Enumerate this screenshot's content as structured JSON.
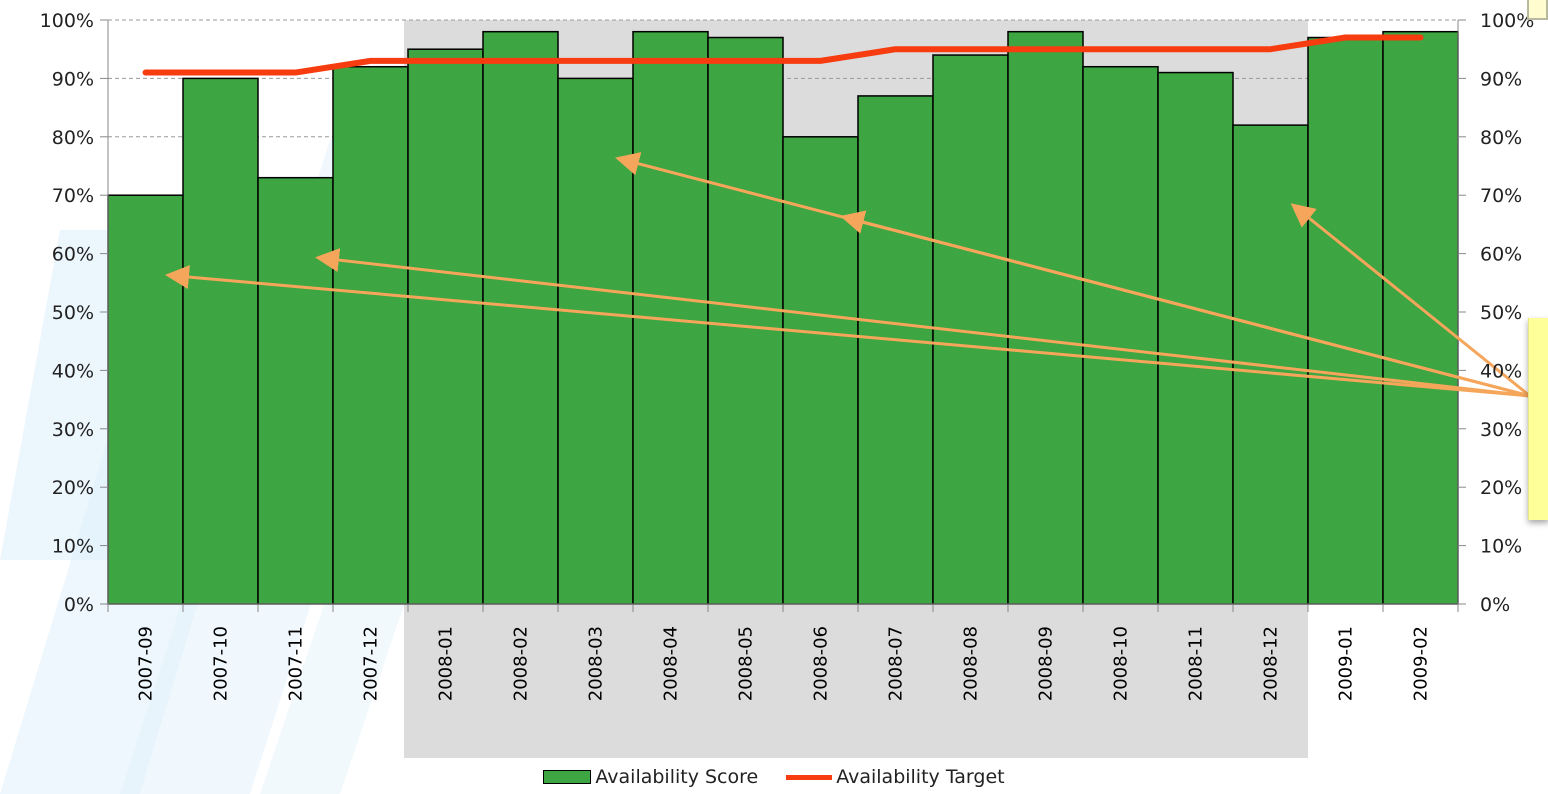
{
  "chart_data": {
    "type": "bar",
    "title": "",
    "xlabel": "",
    "ylabel": "",
    "ylim": [
      0,
      100
    ],
    "y_ticks": [
      "0%",
      "10%",
      "20%",
      "30%",
      "40%",
      "50%",
      "60%",
      "70%",
      "80%",
      "90%",
      "100%"
    ],
    "categories": [
      "2007-09",
      "2007-10",
      "2007-11",
      "2007-12",
      "2008-01",
      "2008-02",
      "2008-03",
      "2008-04",
      "2008-05",
      "2008-06",
      "2008-07",
      "2008-08",
      "2008-09",
      "2008-10",
      "2008-11",
      "2008-12",
      "2009-01",
      "2009-02"
    ],
    "highlight_range": [
      "2008-01",
      "2008-12"
    ],
    "grid": "horizontal dashed at 80%, 90%, 100%",
    "legend_position": "bottom",
    "series": [
      {
        "name": "Availability Score",
        "type": "bar",
        "color": "#3ea543",
        "values": [
          70,
          90,
          73,
          92,
          95,
          98,
          90,
          98,
          97,
          80,
          87,
          94,
          98,
          92,
          91,
          82,
          97,
          98
        ]
      },
      {
        "name": "Availability Target",
        "type": "line",
        "color": "#f73c0f",
        "values": [
          91,
          91,
          91,
          93,
          93,
          93,
          93,
          93,
          93,
          93,
          95,
          95,
          95,
          95,
          95,
          95,
          97,
          97
        ]
      }
    ],
    "annotation_arrows": {
      "color": "#f5a65b",
      "origin": "callout note at right edge",
      "targets": [
        "2007-09",
        "2007-11",
        "2008-03",
        "2008-06",
        "2008-12"
      ]
    }
  }
}
